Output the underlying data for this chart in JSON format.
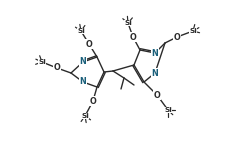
{
  "bg_color": "#ffffff",
  "bond_color": "#2a2a2a",
  "atom_color": "#1a5f7a",
  "line_width": 1.0,
  "font_size": 5.8,
  "si_font_size": 5.2,
  "o_font_size": 5.8,
  "xlim": [
    0,
    10
  ],
  "ylim": [
    0,
    7
  ]
}
